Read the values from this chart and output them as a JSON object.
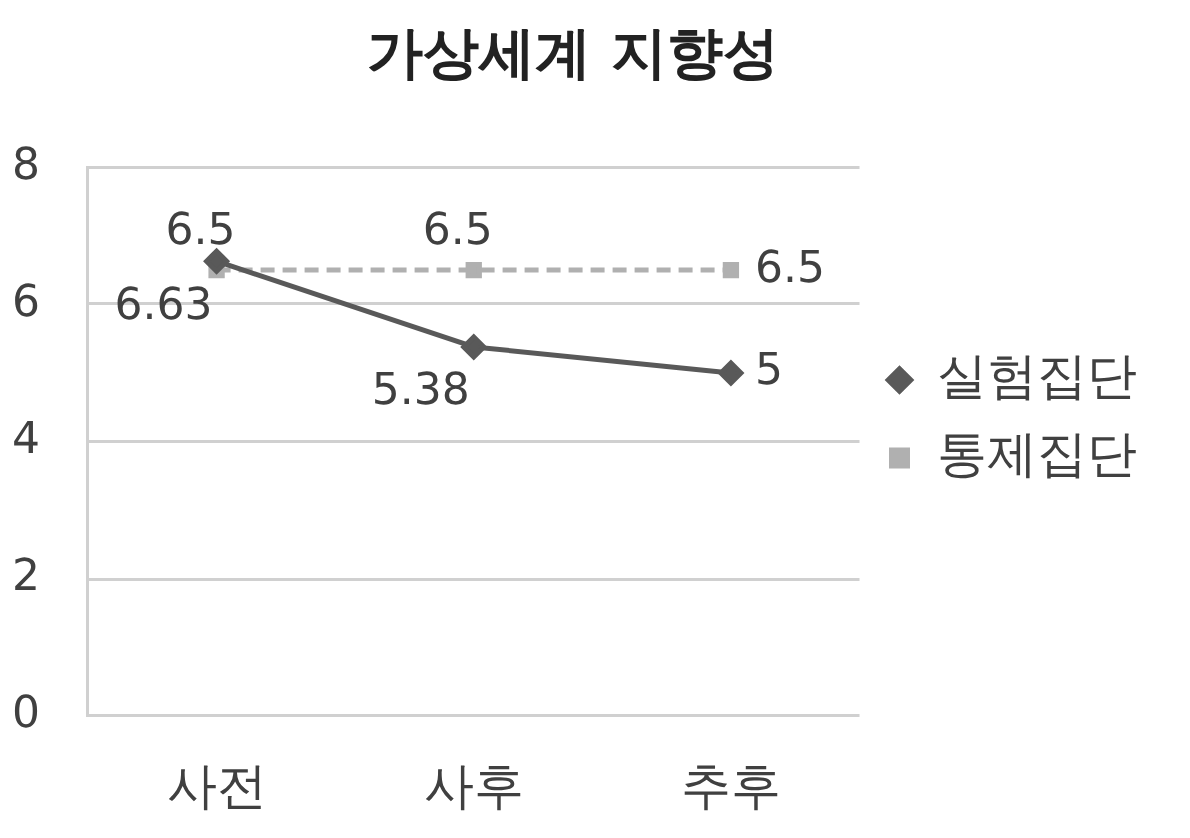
{
  "chart_data": {
    "type": "line",
    "title": "가상세계 지향성",
    "categories": [
      "사전",
      "사후",
      "추후"
    ],
    "series": [
      {
        "name": "실험집단",
        "color": "#595959",
        "values": [
          6.63,
          5.38,
          5
        ],
        "marker": "diamond",
        "line_style": "solid"
      },
      {
        "name": "통제집단",
        "color": "#b0b0b0",
        "values": [
          6.5,
          6.5,
          6.5
        ],
        "marker": "square",
        "line_style": "dashed"
      }
    ],
    "ylim": [
      0,
      8
    ],
    "yticks": [
      0,
      2,
      4,
      6,
      8
    ],
    "grid": "y",
    "legend": "right",
    "data_labels": true
  }
}
